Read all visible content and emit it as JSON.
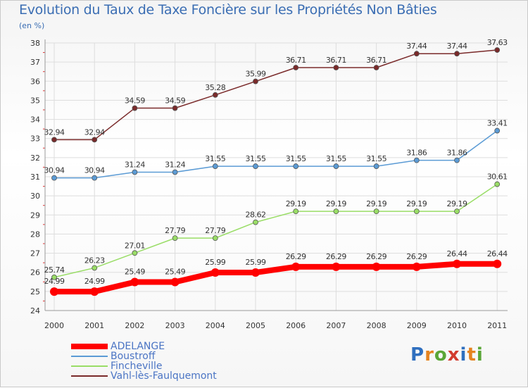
{
  "chart_data": {
    "type": "line",
    "title": "Evolution du Taux de Taxe Foncière sur les Propriétés Non Bâties",
    "unit": "(en %)",
    "xlabel": "",
    "ylabel": "(en %)",
    "ylim": [
      24,
      38
    ],
    "yticks": [
      24,
      25,
      26,
      27,
      28,
      29,
      30,
      31,
      32,
      33,
      34,
      35,
      36,
      37,
      38
    ],
    "categories": [
      "2000",
      "2001",
      "2002",
      "2003",
      "2004",
      "2005",
      "2006",
      "2007",
      "2008",
      "2009",
      "2010",
      "2011"
    ],
    "legend_position": "bottom-left",
    "series": [
      {
        "name": "ADELANGE",
        "color": "#ff0000",
        "values": [
          24.99,
          24.99,
          25.49,
          25.49,
          25.99,
          25.99,
          26.29,
          26.29,
          26.29,
          26.29,
          26.44,
          26.44
        ],
        "labels": [
          "24.99",
          "24.99",
          "25.49",
          "25.49",
          "25.99",
          "25.99",
          "26.29",
          "26.29",
          "26.29",
          "26.29",
          "26.44",
          "26.44"
        ]
      },
      {
        "name": "Boustroff",
        "color": "#5b9bd5",
        "values": [
          30.94,
          30.94,
          31.24,
          31.24,
          31.55,
          31.55,
          31.55,
          31.55,
          31.55,
          31.86,
          31.86,
          33.41
        ],
        "labels": [
          "30.94",
          "30.94",
          "31.24",
          "31.24",
          "31.55",
          "31.55",
          "31.55",
          "31.55",
          "31.55",
          "31.86",
          "31.86",
          "33.41"
        ]
      },
      {
        "name": "Fincheville",
        "color": "#99dd66",
        "values": [
          25.74,
          26.23,
          27.01,
          27.79,
          27.79,
          28.62,
          29.19,
          29.19,
          29.19,
          29.19,
          29.19,
          30.61
        ],
        "labels": [
          "25.74",
          "26.23",
          "27.01",
          "27.79",
          "27.79",
          "28.62",
          "29.19",
          "29.19",
          "29.19",
          "29.19",
          "29.19",
          "30.61"
        ]
      },
      {
        "name": "Vahl-lès-Faulquemont",
        "color": "#7a2a2a",
        "values": [
          32.94,
          32.94,
          34.59,
          34.59,
          35.28,
          35.99,
          36.71,
          36.71,
          36.71,
          37.44,
          37.44,
          37.63
        ],
        "labels": [
          "32.94",
          "32.94",
          "34.59",
          "34.59",
          "35.28",
          "35.99",
          "36.71",
          "36.71",
          "36.71",
          "37.44",
          "37.44",
          "37.63"
        ]
      }
    ]
  }
}
